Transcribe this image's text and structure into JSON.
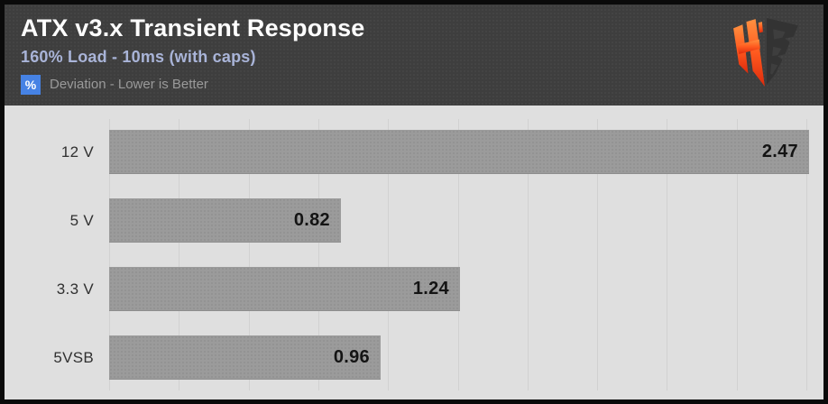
{
  "header": {
    "title": "ATX v3.x Transient Response",
    "subtitle": "160% Load - 10ms (with caps)",
    "legend": {
      "badge": "%",
      "text": "Deviation - Lower is Better"
    },
    "logo_icon": "hardware-busters-hb-logo"
  },
  "chart_data": {
    "type": "bar",
    "orientation": "horizontal",
    "title": "ATX v3.x Transient Response",
    "subtitle": "160% Load - 10ms (with caps)",
    "unit": "% Deviation",
    "note": "Lower is Better",
    "categories": [
      "12 V",
      "5 V",
      "3.3 V",
      "5VSB"
    ],
    "values": [
      2.47,
      0.82,
      1.24,
      0.96
    ],
    "value_labels": [
      "2.47",
      "0.82",
      "1.24",
      "0.96"
    ],
    "xlim": [
      0,
      2.55
    ],
    "gridlines": true,
    "gridline_count": 11,
    "legend_position": "top-left-header",
    "tick_labels_shown": false
  },
  "colors": {
    "frame": "#0a0a0a",
    "header_bg": "#3e3e3e",
    "title": "#ffffff",
    "subtitle": "#a9b4d8",
    "legend_badge_bg": "#4682e4",
    "legend_badge_text": "#ffffff",
    "legend_text": "#9a9a9a",
    "chart_bg": "#dfdfdf",
    "gridline": "#d1d1d1",
    "bar": "#9b9b9b",
    "bar_edge": "#8d8d8d",
    "category_label": "#303030",
    "value_label": "#141414",
    "logo_orange_top": "#ff9040",
    "logo_orange_mid": "#ff5a1f",
    "logo_orange_bottom": "#dd2a0c",
    "logo_dark": "#333333"
  }
}
